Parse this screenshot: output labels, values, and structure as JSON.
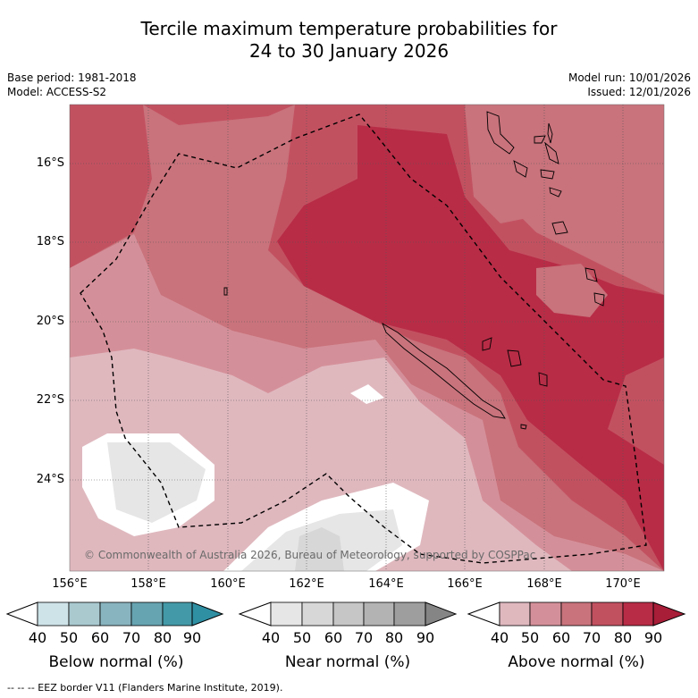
{
  "title_line1": "Tercile maximum temperature probabilities for",
  "title_line2": "24 to 30 January 2026",
  "meta": {
    "base_period": "Base period: 1981-2018",
    "model": "Model: ACCESS-S2",
    "model_run": "Model run: 10/01/2026",
    "issued": "Issued: 12/01/2026"
  },
  "map": {
    "lat_labels": [
      "16°S",
      "18°S",
      "20°S",
      "22°S",
      "24°S"
    ],
    "lon_labels": [
      "156°E",
      "158°E",
      "160°E",
      "162°E",
      "164°E",
      "166°E",
      "168°E",
      "170°E"
    ],
    "copyright": "© Commonwealth of Australia 2026, Bureau of Meteorology, supported by COSPPac"
  },
  "colorbars": [
    {
      "title": "Below normal (%)",
      "ticks": [
        "40",
        "50",
        "60",
        "70",
        "80",
        "90"
      ],
      "colors": [
        "#ffffff",
        "#cde3e8",
        "#a9c9cf",
        "#88b4bf",
        "#67a4b2",
        "#4399a8",
        "#2f8fa3"
      ]
    },
    {
      "title": "Near normal (%)",
      "ticks": [
        "40",
        "50",
        "60",
        "70",
        "80",
        "90"
      ],
      "colors": [
        "#ffffff",
        "#e6e6e6",
        "#d7d7d7",
        "#c6c6c6",
        "#b3b3b3",
        "#9e9e9e",
        "#858585"
      ]
    },
    {
      "title": "Above normal (%)",
      "ticks": [
        "40",
        "50",
        "60",
        "70",
        "80",
        "90"
      ],
      "colors": [
        "#ffffff",
        "#dfb8be",
        "#d4909a",
        "#c9737c",
        "#c25160",
        "#b82c46",
        "#a81d38"
      ]
    }
  ],
  "footer": "--  --  -- EEZ border V11 (Flanders Marine Institute, 2019)."
}
